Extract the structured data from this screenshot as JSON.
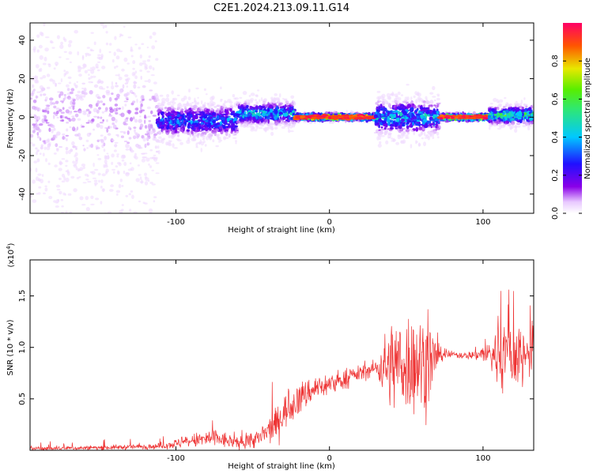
{
  "title": "C2E1.2024.213.09.11.G14",
  "colors": {
    "snr_line": "#ee3333",
    "axis": "#000000",
    "background": "#ffffff"
  },
  "chart_data": [
    {
      "type": "heatmap",
      "xlabel": "Height of straight line (km)",
      "ylabel": "Frequency (Hz)",
      "xlim": [
        -195,
        133
      ],
      "ylim": [
        -50,
        49
      ],
      "x_ticks": [
        -100,
        0,
        100
      ],
      "x_tick_labels": [
        "-100",
        "0",
        "100"
      ],
      "y_ticks": [
        -40,
        -20,
        0,
        20,
        40
      ],
      "y_tick_labels": [
        "-40",
        "-20",
        "0",
        "20",
        "40"
      ],
      "colorscale": "rainbow (purple → blue → cyan → green → yellow → red)",
      "colorbar": {
        "label": "Normalized spectral amplitude",
        "range": [
          0,
          1
        ],
        "ticks": [
          0.0,
          0.2,
          0.4,
          0.6,
          0.8
        ],
        "tick_labels": [
          "0.0",
          "0.2",
          "0.4",
          "0.6",
          "0.8"
        ]
      },
      "regions": [
        {
          "x": [
            -195,
            -112
          ],
          "freq_center": 0,
          "freq_spread": 50,
          "amplitude": 0.1
        },
        {
          "x": [
            -112,
            -60
          ],
          "freq_center": -2,
          "freq_spread": 12,
          "amplitude": 0.35
        },
        {
          "x": [
            -60,
            -22
          ],
          "freq_center": 2,
          "freq_spread": 8,
          "amplitude": 0.45
        },
        {
          "x": [
            -22,
            30
          ],
          "freq_center": 0,
          "freq_spread": 2,
          "amplitude": 0.95
        },
        {
          "x": [
            30,
            72
          ],
          "freq_center": 0,
          "freq_spread": 12,
          "amplitude": 0.45
        },
        {
          "x": [
            72,
            104
          ],
          "freq_center": 0,
          "freq_spread": 2,
          "amplitude": 0.95
        },
        {
          "x": [
            104,
            133
          ],
          "freq_center": 1,
          "freq_spread": 6,
          "amplitude": 0.6
        }
      ],
      "grid": false
    },
    {
      "type": "line",
      "xlabel": "Height of straight line (km)",
      "ylabel": "SNR (10 * v/v)",
      "y_multiplier": "(x10⁴)",
      "y_multiplier_base": "(x10",
      "y_multiplier_exp": "4",
      "y_multiplier_close": ")",
      "xlim": [
        -195,
        133
      ],
      "ylim": [
        0,
        18500
      ],
      "x_ticks": [
        -100,
        0,
        100
      ],
      "x_tick_labels": [
        "-100",
        "0",
        "100"
      ],
      "y_ticks": [
        5000,
        10000,
        15000
      ],
      "y_tick_labels": [
        "0.5",
        "1.0",
        "1.5"
      ],
      "series": [
        {
          "x": [
            -195,
            -150,
            -110,
            -90,
            -75,
            -60,
            -45,
            -35,
            -28,
            -20,
            -10,
            0,
            10,
            20,
            30,
            38,
            45,
            55,
            65,
            72,
            80,
            90,
            100,
            110,
            118,
            125,
            133
          ],
          "baseline": [
            150,
            250,
            400,
            900,
            1200,
            700,
            1200,
            2500,
            4000,
            5000,
            6000,
            6400,
            6900,
            7500,
            8000,
            8200,
            8500,
            8500,
            8500,
            9300,
            9300,
            9200,
            9400,
            9200,
            9200,
            9300,
            9400
          ],
          "spread": [
            150,
            200,
            250,
            600,
            900,
            500,
            900,
            1400,
            1500,
            1400,
            1200,
            1000,
            800,
            700,
            700,
            3500,
            4500,
            4500,
            4000,
            600,
            300,
            300,
            800,
            2800,
            3500,
            3000,
            3000
          ],
          "max": [
            800,
            1100,
            1300,
            2200,
            3100,
            1800,
            3000,
            9500,
            10000,
            8500,
            8500,
            8100,
            8400,
            8600,
            9300,
            17500,
            18000,
            17800,
            18100,
            10200,
            9800,
            9800,
            10600,
            16500,
            17600,
            18000,
            13500
          ]
        }
      ],
      "grid": false
    }
  ]
}
